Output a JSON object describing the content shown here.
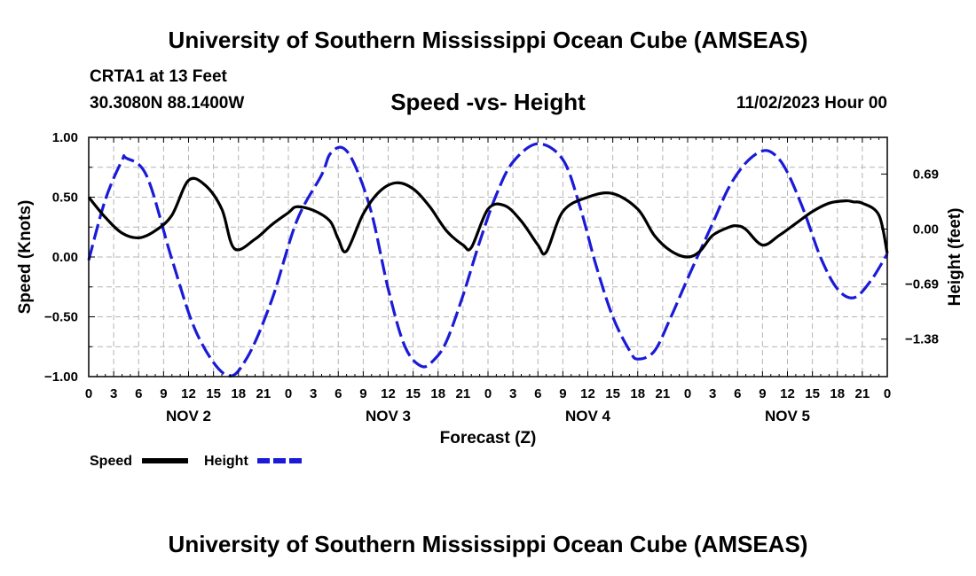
{
  "header": {
    "title": "University of Southern Mississippi Ocean Cube (AMSEAS)",
    "station": "CRTA1 at 13 Feet",
    "coords": "30.3080N  88.1400W",
    "subtitle": "Speed -vs- Height",
    "date": "11/02/2023 Hour 00"
  },
  "footer": {
    "title": "University of Southern Mississippi Ocean Cube (AMSEAS)"
  },
  "chart_data": {
    "type": "line",
    "title": "Speed -vs- Height",
    "xlabel": "Forecast (Z)",
    "ylabel": "Speed (Knots)",
    "y2label": "Height (feet)",
    "xlim": [
      0,
      96
    ],
    "ylim": [
      -1.0,
      1.0
    ],
    "y2lim": [
      -1.85,
      1.15
    ],
    "grid": true,
    "x_ticks": [
      0,
      3,
      6,
      9,
      12,
      15,
      18,
      21,
      24,
      27,
      30,
      33,
      36,
      39,
      42,
      45,
      48,
      51,
      54,
      57,
      60,
      63,
      66,
      69,
      72,
      75,
      78,
      81,
      84,
      87,
      90,
      93,
      96
    ],
    "x_tick_labels": [
      "0",
      "3",
      "6",
      "9",
      "12",
      "15",
      "18",
      "21",
      "0",
      "3",
      "6",
      "9",
      "12",
      "15",
      "18",
      "21",
      "0",
      "3",
      "6",
      "9",
      "12",
      "15",
      "18",
      "21",
      "0",
      "3",
      "6",
      "9",
      "12",
      "15",
      "18",
      "21",
      "0"
    ],
    "day_labels": [
      {
        "label": "NOV 2",
        "x": 12
      },
      {
        "label": "NOV 3",
        "x": 36
      },
      {
        "label": "NOV 4",
        "x": 60
      },
      {
        "label": "NOV 5",
        "x": 84
      }
    ],
    "y_ticks": [
      1.0,
      0.5,
      0.0,
      -0.5,
      -1.0
    ],
    "y_tick_labels": [
      "1.00",
      "0.50",
      "0.00",
      "−0.50",
      "−1.00"
    ],
    "y2_ticks": [
      0.69,
      0.0,
      -0.69,
      -1.38
    ],
    "y2_tick_labels": [
      "0.69",
      "0.00",
      "−0.69",
      "−1.38"
    ],
    "legend": {
      "position": "bottom-left",
      "entries": [
        "Speed",
        "Height"
      ]
    },
    "series": [
      {
        "name": "Speed",
        "axis": "left",
        "color": "#000000",
        "style": "solid",
        "x": [
          0,
          2,
          4,
          6,
          8,
          10,
          12,
          14,
          16,
          17.5,
          20,
          22,
          24,
          25,
          27,
          29,
          30,
          31,
          33,
          35,
          37,
          39,
          41,
          43,
          45,
          46,
          48,
          50,
          52,
          54,
          55,
          57,
          60,
          63,
          66,
          68,
          70,
          72,
          73.5,
          75,
          77,
          78,
          79,
          81,
          83,
          85,
          87,
          89,
          91,
          92,
          93,
          95,
          96
        ],
        "values": [
          0.5,
          0.33,
          0.2,
          0.16,
          0.22,
          0.35,
          0.64,
          0.6,
          0.4,
          0.07,
          0.15,
          0.27,
          0.37,
          0.42,
          0.39,
          0.3,
          0.15,
          0.05,
          0.36,
          0.55,
          0.62,
          0.57,
          0.42,
          0.22,
          0.1,
          0.08,
          0.4,
          0.43,
          0.3,
          0.1,
          0.04,
          0.38,
          0.5,
          0.53,
          0.4,
          0.18,
          0.05,
          0.0,
          0.05,
          0.18,
          0.25,
          0.26,
          0.23,
          0.1,
          0.18,
          0.28,
          0.38,
          0.45,
          0.47,
          0.46,
          0.45,
          0.35,
          0.03
        ]
      },
      {
        "name": "Height",
        "axis": "right",
        "color": "#1a1ad8",
        "style": "dashed",
        "x": [
          0,
          2,
          4,
          4.5,
          7,
          10,
          13,
          16.5,
          19,
          22,
          25,
          28,
          29,
          30.5,
          32,
          34,
          36,
          38,
          40,
          41.5,
          43,
          45,
          47,
          49,
          51,
          54,
          57,
          59,
          61,
          63,
          65,
          66,
          68,
          70,
          72,
          75,
          77,
          79,
          81,
          82.5,
          84,
          86,
          88,
          90,
          92,
          94,
          96
        ],
        "values": [
          -0.39,
          0.37,
          0.86,
          0.89,
          0.66,
          -0.38,
          -1.31,
          -1.83,
          -1.62,
          -0.89,
          0.1,
          0.68,
          0.94,
          1.02,
          0.8,
          0.2,
          -0.75,
          -1.47,
          -1.72,
          -1.64,
          -1.41,
          -0.83,
          -0.16,
          0.43,
          0.84,
          1.07,
          0.87,
          0.3,
          -0.46,
          -1.1,
          -1.52,
          -1.63,
          -1.53,
          -1.1,
          -0.62,
          0.07,
          0.53,
          0.83,
          0.98,
          0.93,
          0.71,
          0.22,
          -0.36,
          -0.75,
          -0.86,
          -0.65,
          -0.31
        ]
      }
    ]
  }
}
